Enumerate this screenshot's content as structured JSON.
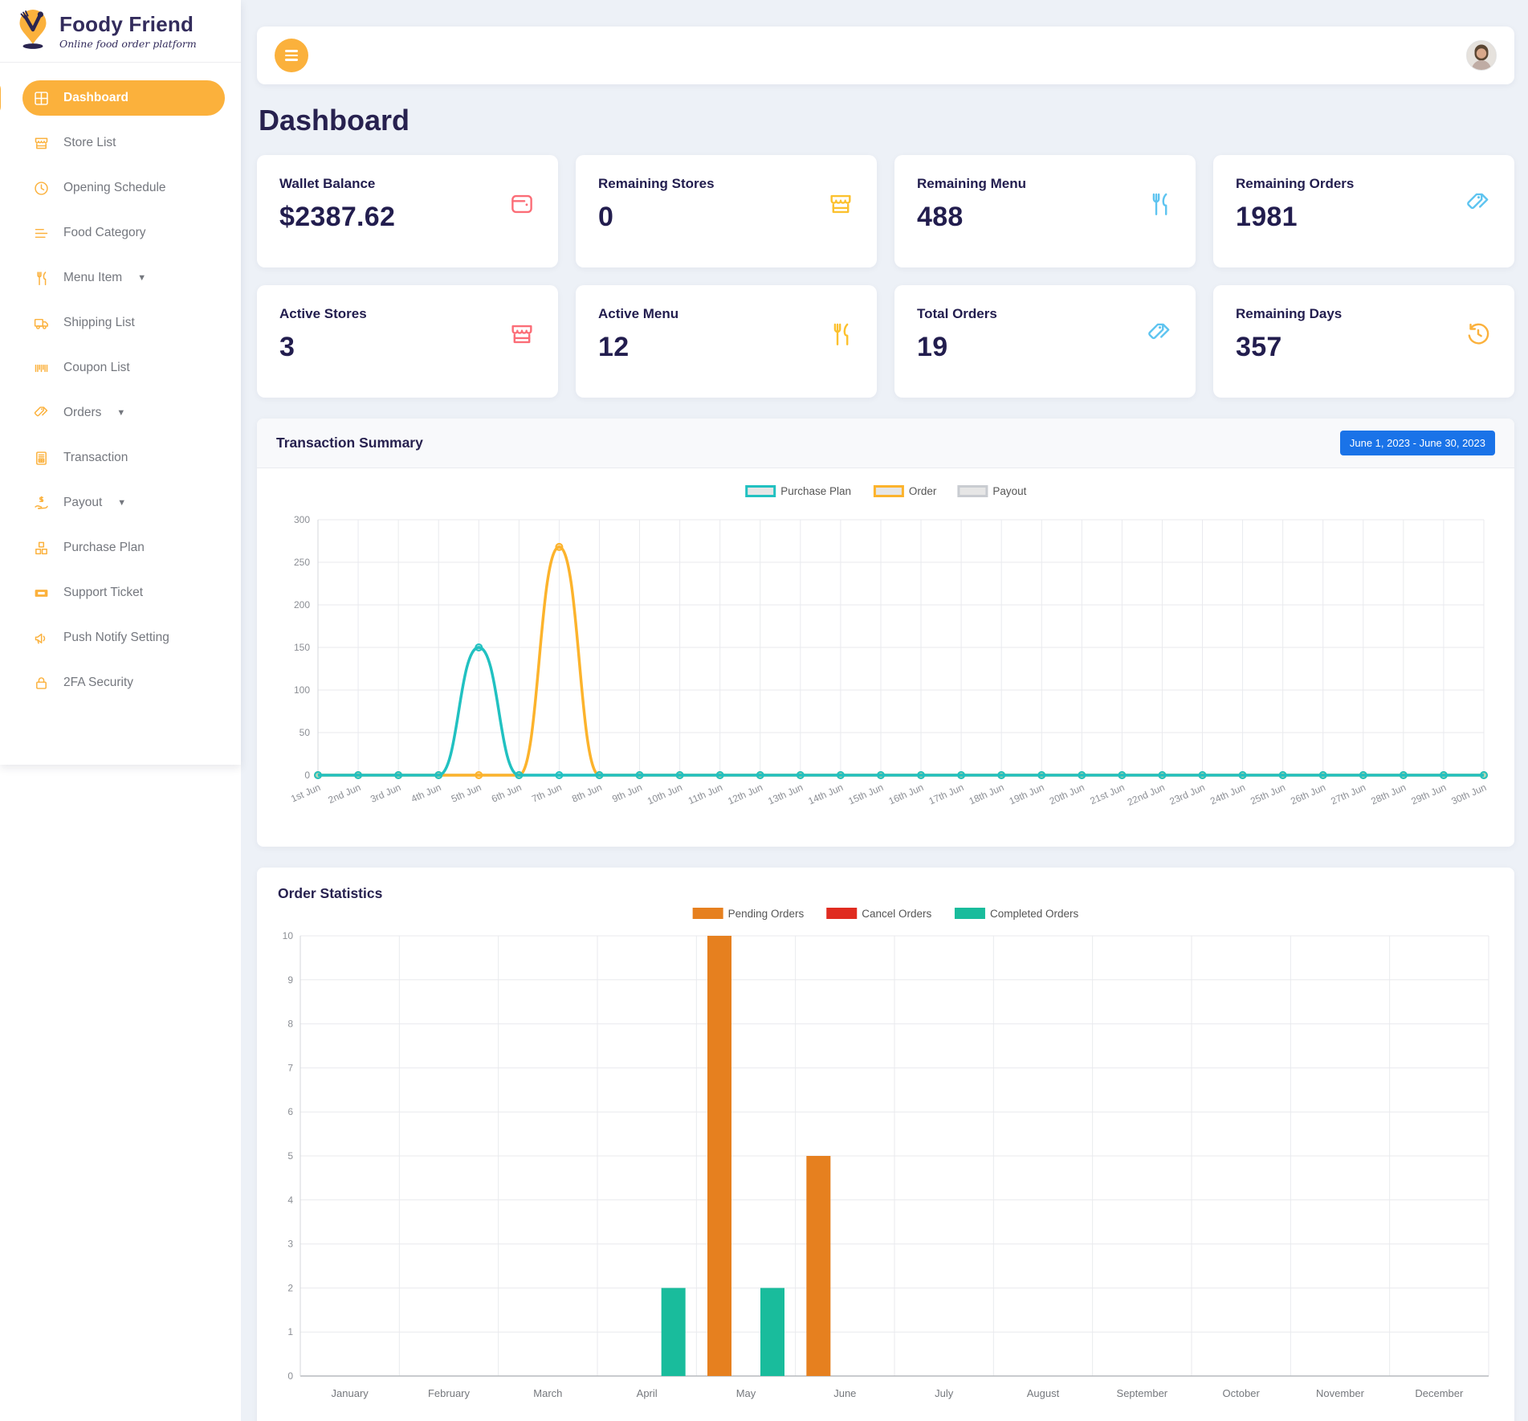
{
  "app": {
    "name": "Foody Friend",
    "tagline": "Online food order platform"
  },
  "page_title": "Dashboard",
  "colors": {
    "accent": "#fbb13c",
    "badge_blue": "#1a73e8",
    "heading_navy": "#27214f",
    "pink": "#fb6d77",
    "sky_blue": "#5ec4f0",
    "yellow": "#fcc12e"
  },
  "topbar": {
    "menu_icon": "hamburger-menu-icon",
    "avatar": "user-avatar"
  },
  "sidebar": {
    "items": [
      {
        "label": "Dashboard",
        "icon": "grid-icon",
        "active": true,
        "caret": false
      },
      {
        "label": "Store List",
        "icon": "store-icon",
        "active": false,
        "caret": false
      },
      {
        "label": "Opening Schedule",
        "icon": "clock-icon",
        "active": false,
        "caret": false
      },
      {
        "label": "Food Category",
        "icon": "list-icon",
        "active": false,
        "caret": false
      },
      {
        "label": "Menu Item",
        "icon": "utensils-icon",
        "active": false,
        "caret": true
      },
      {
        "label": "Shipping List",
        "icon": "truck-icon",
        "active": false,
        "caret": false
      },
      {
        "label": "Coupon List",
        "icon": "barcode-icon",
        "active": false,
        "caret": false
      },
      {
        "label": "Orders",
        "icon": "tags-icon",
        "active": false,
        "caret": true
      },
      {
        "label": "Transaction",
        "icon": "invoice-icon",
        "active": false,
        "caret": false
      },
      {
        "label": "Payout",
        "icon": "hand-dollar-icon",
        "active": false,
        "caret": true
      },
      {
        "label": "Purchase Plan",
        "icon": "cubes-icon",
        "active": false,
        "caret": false
      },
      {
        "label": "Support Ticket",
        "icon": "ticket-icon",
        "active": false,
        "caret": false
      },
      {
        "label": "Push Notify Setting",
        "icon": "megaphone-icon",
        "active": false,
        "caret": false
      },
      {
        "label": "2FA Security",
        "icon": "lock-icon",
        "active": false,
        "caret": false
      }
    ]
  },
  "stat_cards": [
    {
      "label": "Wallet Balance",
      "value": "$2387.62",
      "icon": "wallet-icon",
      "color": "#fb6d77"
    },
    {
      "label": "Remaining Stores",
      "value": "0",
      "icon": "store-icon",
      "color": "#fcc12e"
    },
    {
      "label": "Remaining Menu",
      "value": "488",
      "icon": "utensils-icon",
      "color": "#5ec4f0"
    },
    {
      "label": "Remaining Orders",
      "value": "1981",
      "icon": "tags-icon",
      "color": "#5ec4f0"
    },
    {
      "label": "Active Stores",
      "value": "3",
      "icon": "store-icon",
      "color": "#fb6d77"
    },
    {
      "label": "Active Menu",
      "value": "12",
      "icon": "utensils-icon",
      "color": "#fcc12e"
    },
    {
      "label": "Total Orders",
      "value": "19",
      "icon": "tags-icon",
      "color": "#5ec4f0"
    },
    {
      "label": "Remaining Days",
      "value": "357",
      "icon": "history-icon",
      "color": "#fbb13c"
    }
  ],
  "transaction_summary": {
    "title": "Transaction Summary",
    "date_range_badge": "June 1, 2023 - June 30, 2023",
    "chart_data": {
      "type": "line",
      "x": [
        "1st Jun",
        "2nd Jun",
        "3rd Jun",
        "4th Jun",
        "5th Jun",
        "6th Jun",
        "7th Jun",
        "8th Jun",
        "9th Jun",
        "10th Jun",
        "11th Jun",
        "12th Jun",
        "13th Jun",
        "14th Jun",
        "15th Jun",
        "16th Jun",
        "17th Jun",
        "18th Jun",
        "19th Jun",
        "20th Jun",
        "21st Jun",
        "22nd Jun",
        "23rd Jun",
        "24th Jun",
        "25th Jun",
        "26th Jun",
        "27th Jun",
        "28th Jun",
        "29th Jun",
        "30th Jun"
      ],
      "series": [
        {
          "name": "Purchase Plan",
          "color": "#21c1c1",
          "values": [
            0,
            0,
            0,
            0,
            150,
            0,
            0,
            0,
            0,
            0,
            0,
            0,
            0,
            0,
            0,
            0,
            0,
            0,
            0,
            0,
            0,
            0,
            0,
            0,
            0,
            0,
            0,
            0,
            0,
            0
          ]
        },
        {
          "name": "Order",
          "color": "#fcb32c",
          "values": [
            0,
            0,
            0,
            0,
            0,
            0,
            268,
            0,
            0,
            0,
            0,
            0,
            0,
            0,
            0,
            0,
            0,
            0,
            0,
            0,
            0,
            0,
            0,
            0,
            0,
            0,
            0,
            0,
            0,
            0
          ]
        },
        {
          "name": "Payout",
          "color": "#c9ccd1",
          "values": [
            0,
            0,
            0,
            0,
            0,
            0,
            0,
            0,
            0,
            0,
            0,
            0,
            0,
            0,
            0,
            0,
            0,
            0,
            0,
            0,
            0,
            0,
            0,
            0,
            0,
            0,
            0,
            0,
            0,
            0
          ]
        }
      ],
      "ylim": [
        0,
        300
      ],
      "yticks": [
        0,
        50,
        100,
        150,
        200,
        250,
        300
      ],
      "grid": true,
      "legend_position": "top"
    }
  },
  "order_statistics": {
    "title": "Order Statistics",
    "chart_data": {
      "type": "bar",
      "categories": [
        "January",
        "February",
        "March",
        "April",
        "May",
        "June",
        "July",
        "August",
        "September",
        "October",
        "November",
        "December"
      ],
      "series": [
        {
          "name": "Pending Orders",
          "color": "#e6801f",
          "values": [
            0,
            0,
            0,
            0,
            10,
            5,
            0,
            0,
            0,
            0,
            0,
            0
          ]
        },
        {
          "name": "Cancel Orders",
          "color": "#e02b20",
          "values": [
            0,
            0,
            0,
            0,
            0,
            0,
            0,
            0,
            0,
            0,
            0,
            0
          ]
        },
        {
          "name": "Completed Orders",
          "color": "#19bc9c",
          "values": [
            0,
            0,
            0,
            2,
            2,
            0,
            0,
            0,
            0,
            0,
            0,
            0
          ]
        }
      ],
      "ylim": [
        0,
        10
      ],
      "yticks": [
        0,
        1,
        2,
        3,
        4,
        5,
        6,
        7,
        8,
        9,
        10
      ],
      "grid": true,
      "legend_position": "top"
    }
  }
}
